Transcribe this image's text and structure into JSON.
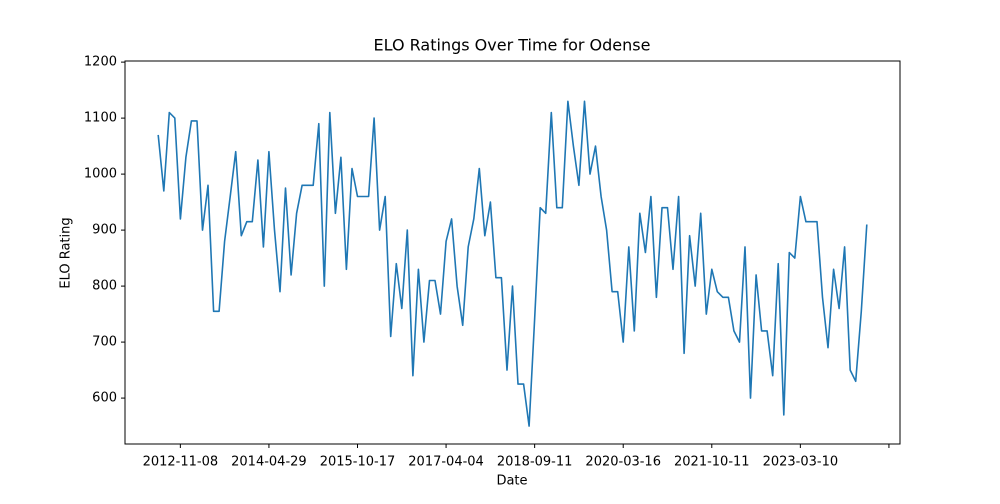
{
  "chart_data": {
    "type": "line",
    "title": "ELO Ratings Over Time for Odense",
    "x_label": "Date",
    "y_label": "ELO Rating",
    "categories": [
      null,
      null,
      null,
      null,
      "2012-11-08",
      null,
      null,
      null,
      null,
      null,
      null,
      null,
      null,
      null,
      null,
      null,
      null,
      null,
      null,
      null,
      "2014-04-29",
      null,
      null,
      null,
      null,
      null,
      null,
      null,
      null,
      null,
      null,
      null,
      null,
      null,
      null,
      null,
      "2015-10-17",
      null,
      null,
      null,
      null,
      null,
      null,
      null,
      null,
      null,
      null,
      null,
      null,
      null,
      null,
      null,
      "2017-04-04",
      null,
      null,
      null,
      null,
      null,
      null,
      null,
      null,
      null,
      null,
      null,
      null,
      null,
      null,
      null,
      "2018-09-11",
      null,
      null,
      null,
      null,
      null,
      null,
      null,
      null,
      null,
      null,
      null,
      null,
      null,
      null,
      null,
      "2020-03-16",
      null,
      null,
      null,
      null,
      null,
      null,
      null,
      null,
      null,
      null,
      null,
      null,
      null,
      null,
      null,
      "2021-10-11",
      null,
      null,
      null,
      null,
      null,
      null,
      null,
      null,
      null,
      null,
      null,
      null,
      null,
      null,
      null,
      "2023-03-10",
      null,
      null,
      null,
      null,
      null,
      null,
      null,
      null,
      null,
      null,
      null,
      null,
      null,
      null,
      null,
      null
    ],
    "series": [
      {
        "name": "Odense",
        "color": "#1f77b4",
        "values": [
          1070,
          970,
          1110,
          1100,
          920,
          1030,
          1095,
          1095,
          900,
          980,
          755,
          755,
          880,
          960,
          1040,
          890,
          915,
          915,
          1025,
          870,
          1040,
          900,
          790,
          975,
          820,
          930,
          980,
          980,
          980,
          1090,
          800,
          1110,
          930,
          1030,
          830,
          1010,
          960,
          960,
          960,
          1100,
          900,
          960,
          710,
          840,
          760,
          900,
          640,
          830,
          700,
          810,
          810,
          750,
          880,
          920,
          800,
          730,
          870,
          920,
          1010,
          890,
          950,
          815,
          815,
          650,
          800,
          625,
          625,
          550,
          740,
          940,
          930,
          1110,
          940,
          940,
          1130,
          1050,
          980,
          1130,
          1000,
          1050,
          960,
          900,
          790,
          790,
          700,
          870,
          720,
          930,
          860,
          960,
          780,
          940,
          940,
          830,
          960,
          680,
          890,
          800,
          930,
          750,
          830,
          790,
          780,
          780,
          720,
          700,
          870,
          600,
          820,
          720,
          720,
          640,
          840,
          570,
          860,
          850,
          960,
          915,
          915,
          915,
          780,
          690,
          830,
          760,
          870,
          650,
          630,
          755,
          910,
          null,
          null,
          null,
          null
        ]
      }
    ],
    "ylim": [
      518,
      1202
    ],
    "yticks": [
      600,
      700,
      800,
      900,
      1000,
      1100,
      1200
    ]
  }
}
